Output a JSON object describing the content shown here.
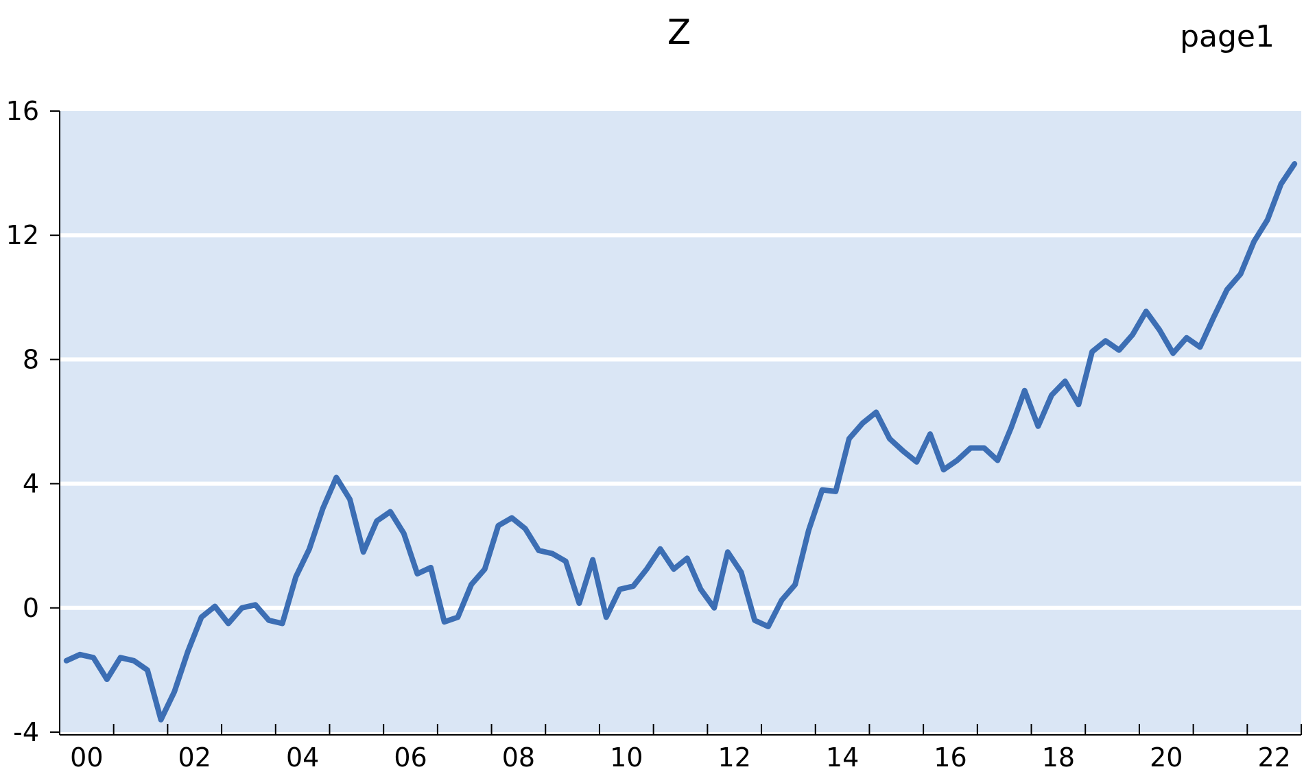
{
  "page_label": "page1",
  "chart_data": {
    "type": "line",
    "title": "Z",
    "xlabel": "",
    "ylabel": "",
    "ylim": [
      -4,
      16
    ],
    "yticks": [
      -4,
      0,
      4,
      8,
      12,
      16
    ],
    "xlim": [
      2000,
      2023
    ],
    "xtick_years": [
      2000,
      2002,
      2004,
      2006,
      2008,
      2010,
      2012,
      2014,
      2016,
      2018,
      2020,
      2022
    ],
    "xtick_labels": [
      "00",
      "02",
      "04",
      "06",
      "08",
      "10",
      "12",
      "14",
      "16",
      "18",
      "20",
      "22"
    ],
    "grid": true,
    "frequency": "quarterly",
    "colors": {
      "line": "#3c6eb4",
      "plot_bg": "#dae6f5",
      "grid": "#ffffff"
    },
    "series": [
      {
        "start": "2000Q1",
        "values": [
          -1.7,
          -1.5,
          -1.6,
          -2.3,
          -1.6,
          -1.7,
          -2.0,
          -3.6,
          -2.7,
          -1.4,
          -0.3,
          0.05,
          -0.5,
          0.0,
          0.1,
          -0.4,
          -0.5,
          1.0,
          1.9,
          3.2,
          4.2,
          3.5,
          1.8,
          2.8,
          3.1,
          2.4,
          1.1,
          1.3,
          -0.45,
          -0.3,
          0.75,
          1.25,
          2.65,
          2.9,
          2.55,
          1.85,
          1.75,
          1.5,
          0.15,
          1.55,
          -0.3,
          0.6,
          0.7,
          1.25,
          1.9,
          1.25,
          1.6,
          0.6,
          0.0,
          1.8,
          1.15,
          -0.4,
          -0.6,
          0.25,
          0.75,
          2.5,
          3.8,
          3.75,
          5.45,
          5.95,
          6.3,
          5.45,
          5.05,
          4.7,
          5.6,
          4.45,
          4.75,
          5.15,
          5.15,
          4.75,
          5.8,
          7.0,
          5.85,
          6.85,
          7.3,
          6.55,
          8.25,
          8.6,
          8.3,
          8.8,
          9.55,
          8.95,
          8.2,
          8.7,
          8.4,
          9.35,
          10.25,
          10.75,
          11.8,
          12.5,
          13.65,
          14.3
        ]
      }
    ]
  }
}
